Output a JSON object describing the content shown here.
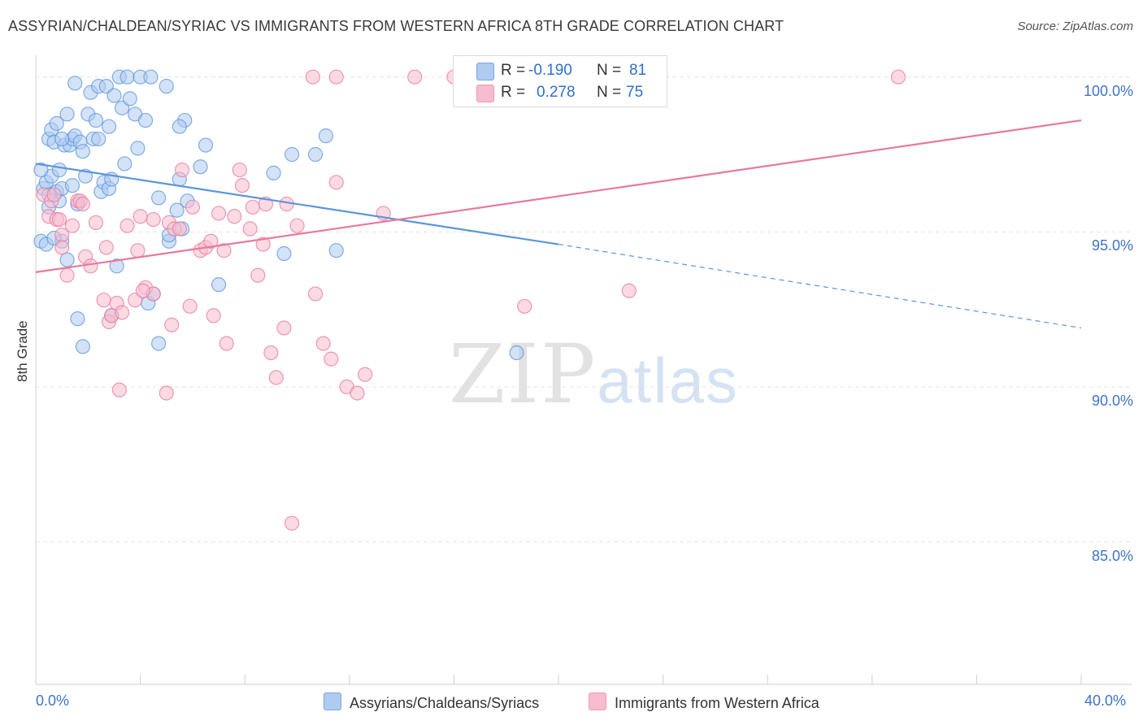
{
  "title": "ASSYRIAN/CHALDEAN/SYRIAC VS IMMIGRANTS FROM WESTERN AFRICA 8TH GRADE CORRELATION CHART",
  "source": "Source: ZipAtlas.com",
  "watermark": {
    "zip": "ZIP",
    "atlas": "atlas"
  },
  "stats": [
    {
      "r_label": "R =",
      "r_value": "-0.190",
      "n_label": "N =",
      "n_value": "81",
      "color": "#aecbf0"
    },
    {
      "r_label": "R =",
      "r_value": "0.278",
      "n_label": "N =",
      "n_value": "75",
      "color": "#f7bccd"
    }
  ],
  "legend": [
    {
      "label": "Assyrians/Chaldeans/Syriacs",
      "color": "#aecbf0"
    },
    {
      "label": "Immigrants from Western Africa",
      "color": "#f7bccd"
    }
  ],
  "chart_data": {
    "type": "scatter",
    "xlabel": "",
    "ylabel": "8th Grade",
    "xlim": [
      0,
      40
    ],
    "ylim": [
      80.4,
      100.7
    ],
    "x_tick_labels": [
      "0.0%",
      "40.0%"
    ],
    "y_ticks": [
      100,
      95,
      90,
      85
    ],
    "y_tick_labels": [
      "100.0%",
      "95.0%",
      "90.0%",
      "85.0%"
    ],
    "grid": true,
    "series": [
      {
        "name": "Assyrians/Chaldeans/Syriacs",
        "color": "#5b95dc",
        "fill": "#aecbf0",
        "trend": {
          "x0": 0,
          "y0": 97.2,
          "x1": 20,
          "y1": 94.6,
          "dash_to_x": 40,
          "dash_to_y": 91.9
        },
        "points": [
          [
            0.2,
            94.7
          ],
          [
            0.4,
            94.6
          ],
          [
            0.3,
            96.4
          ],
          [
            0.4,
            96.6
          ],
          [
            0.5,
            95.8
          ],
          [
            0.6,
            96.8
          ],
          [
            0.5,
            98.0
          ],
          [
            0.6,
            98.3
          ],
          [
            0.7,
            97.9
          ],
          [
            0.8,
            98.5
          ],
          [
            0.8,
            96.3
          ],
          [
            0.9,
            96.0
          ],
          [
            0.9,
            97.0
          ],
          [
            1.0,
            94.7
          ],
          [
            1.0,
            96.4
          ],
          [
            1.1,
            97.8
          ],
          [
            1.2,
            98.8
          ],
          [
            1.3,
            97.8
          ],
          [
            1.4,
            98.0
          ],
          [
            1.4,
            96.5
          ],
          [
            1.5,
            98.1
          ],
          [
            1.6,
            95.9
          ],
          [
            1.7,
            97.9
          ],
          [
            1.8,
            97.6
          ],
          [
            1.9,
            96.8
          ],
          [
            2.0,
            98.8
          ],
          [
            2.1,
            99.5
          ],
          [
            2.2,
            98.0
          ],
          [
            2.3,
            98.6
          ],
          [
            2.4,
            99.7
          ],
          [
            2.5,
            96.3
          ],
          [
            2.6,
            96.6
          ],
          [
            2.7,
            99.7
          ],
          [
            2.8,
            98.4
          ],
          [
            2.8,
            96.4
          ],
          [
            2.9,
            96.7
          ],
          [
            3.0,
            99.4
          ],
          [
            3.2,
            100.0
          ],
          [
            3.3,
            99.0
          ],
          [
            3.4,
            97.2
          ],
          [
            3.5,
            100.0
          ],
          [
            3.6,
            99.3
          ],
          [
            3.8,
            98.8
          ],
          [
            3.9,
            97.7
          ],
          [
            4.0,
            100.0
          ],
          [
            4.2,
            98.6
          ],
          [
            4.4,
            100.0
          ],
          [
            4.7,
            96.1
          ],
          [
            5.1,
            94.7
          ],
          [
            5.1,
            94.9
          ],
          [
            5.4,
            95.7
          ],
          [
            5.6,
            95.1
          ],
          [
            5.8,
            96.0
          ],
          [
            6.3,
            97.1
          ],
          [
            6.5,
            97.8
          ],
          [
            7.0,
            93.3
          ],
          [
            1.5,
            99.8
          ],
          [
            5.0,
            99.7
          ],
          [
            5.7,
            98.6
          ],
          [
            5.5,
            98.4
          ],
          [
            5.5,
            96.7
          ],
          [
            1.6,
            92.2
          ],
          [
            1.8,
            91.3
          ],
          [
            2.9,
            92.3
          ],
          [
            4.3,
            92.7
          ],
          [
            4.5,
            93.0
          ],
          [
            4.7,
            91.4
          ],
          [
            3.1,
            93.9
          ],
          [
            9.1,
            96.9
          ],
          [
            9.5,
            94.3
          ],
          [
            9.8,
            97.5
          ],
          [
            10.7,
            97.5
          ],
          [
            11.1,
            98.1
          ],
          [
            11.5,
            94.4
          ],
          [
            18.4,
            91.1
          ],
          [
            0.2,
            97.0
          ],
          [
            0.5,
            96.2
          ],
          [
            0.7,
            94.8
          ],
          [
            1.2,
            94.1
          ],
          [
            2.4,
            98.0
          ],
          [
            1.0,
            98.0
          ]
        ]
      },
      {
        "name": "Immigrants from Western Africa",
        "color": "#e8799d",
        "fill": "#f7bccd",
        "trend": {
          "x0": 0,
          "y0": 93.7,
          "x1": 40,
          "y1": 98.6
        },
        "points": [
          [
            0.3,
            96.2
          ],
          [
            0.5,
            95.5
          ],
          [
            0.6,
            96.0
          ],
          [
            0.7,
            96.2
          ],
          [
            0.8,
            95.4
          ],
          [
            0.9,
            95.4
          ],
          [
            1.0,
            94.9
          ],
          [
            1.0,
            94.5
          ],
          [
            1.2,
            93.6
          ],
          [
            1.4,
            95.2
          ],
          [
            1.6,
            96.0
          ],
          [
            1.7,
            96.0
          ],
          [
            1.8,
            95.9
          ],
          [
            1.9,
            94.2
          ],
          [
            2.1,
            93.9
          ],
          [
            2.3,
            95.3
          ],
          [
            2.6,
            92.8
          ],
          [
            2.7,
            94.5
          ],
          [
            2.8,
            92.1
          ],
          [
            2.9,
            92.3
          ],
          [
            3.1,
            92.7
          ],
          [
            3.3,
            92.4
          ],
          [
            3.5,
            95.2
          ],
          [
            3.8,
            92.8
          ],
          [
            3.9,
            94.4
          ],
          [
            4.0,
            95.5
          ],
          [
            4.2,
            93.2
          ],
          [
            4.5,
            93.0
          ],
          [
            4.5,
            95.4
          ],
          [
            5.1,
            95.3
          ],
          [
            5.2,
            92.0
          ],
          [
            5.3,
            95.1
          ],
          [
            5.5,
            95.1
          ],
          [
            5.6,
            97.0
          ],
          [
            5.9,
            92.6
          ],
          [
            6.0,
            95.8
          ],
          [
            6.3,
            94.4
          ],
          [
            6.5,
            94.5
          ],
          [
            6.7,
            94.7
          ],
          [
            6.8,
            92.3
          ],
          [
            7.0,
            95.6
          ],
          [
            7.2,
            94.4
          ],
          [
            7.3,
            91.4
          ],
          [
            7.6,
            95.5
          ],
          [
            7.8,
            97.0
          ],
          [
            7.9,
            96.5
          ],
          [
            8.2,
            95.1
          ],
          [
            8.3,
            95.8
          ],
          [
            8.5,
            93.6
          ],
          [
            8.7,
            94.6
          ],
          [
            8.8,
            95.9
          ],
          [
            9.0,
            91.1
          ],
          [
            9.2,
            90.3
          ],
          [
            9.5,
            91.9
          ],
          [
            9.6,
            95.9
          ],
          [
            10.0,
            95.2
          ],
          [
            10.7,
            93.0
          ],
          [
            11.0,
            91.4
          ],
          [
            11.3,
            90.9
          ],
          [
            11.5,
            96.6
          ],
          [
            11.9,
            90.0
          ],
          [
            12.3,
            89.8
          ],
          [
            12.6,
            90.4
          ],
          [
            13.3,
            95.6
          ],
          [
            18.7,
            92.6
          ],
          [
            22.7,
            93.1
          ],
          [
            4.1,
            93.1
          ],
          [
            9.8,
            85.6
          ],
          [
            5.0,
            89.8
          ],
          [
            3.2,
            89.9
          ],
          [
            10.6,
            100.0
          ],
          [
            11.5,
            100.0
          ],
          [
            14.5,
            100.0
          ],
          [
            16.0,
            100.0
          ],
          [
            33.0,
            100.0
          ]
        ]
      }
    ]
  }
}
